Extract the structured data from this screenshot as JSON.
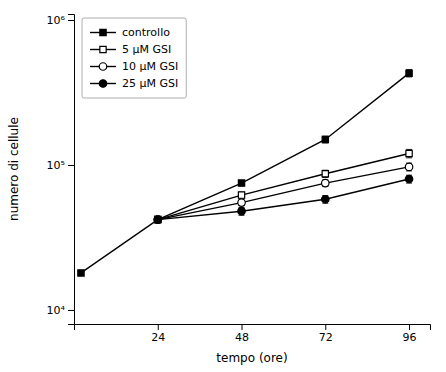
{
  "chart_data": {
    "type": "line",
    "xlabel": "tempo (ore)",
    "ylabel": "numero di cellule",
    "log": "y",
    "grid": false,
    "legend": "upper-left",
    "xlim": [
      0,
      102
    ],
    "xticks": [
      24,
      48,
      72,
      96
    ],
    "ylim": [
      8000,
      1100000
    ],
    "yticks": [
      {
        "value": 10000,
        "label": "10⁴"
      },
      {
        "value": 100000,
        "label": "10⁵"
      },
      {
        "value": 1000000,
        "label": "10⁶"
      }
    ],
    "series": [
      {
        "name": "controllo",
        "color": "#000000",
        "marker": "square-filled",
        "line_style": "solid",
        "x": [
          2,
          24,
          48,
          72,
          96
        ],
        "values": [
          18000,
          42000,
          75000,
          150000,
          430000
        ],
        "errors": [
          500,
          2000,
          3000,
          8000,
          25000
        ]
      },
      {
        "name": "5 μM GSI",
        "color": "#000000",
        "marker": "square-open",
        "line_style": "solid",
        "x": [
          24,
          48,
          72,
          96
        ],
        "values": [
          42000,
          62000,
          87000,
          120000
        ],
        "errors": [
          2000,
          3000,
          5000,
          8000
        ]
      },
      {
        "name": "10 μM GSI",
        "color": "#000000",
        "marker": "circle-open",
        "line_style": "solid",
        "x": [
          24,
          48,
          72,
          96
        ],
        "values": [
          42000,
          55000,
          75000,
          97000
        ],
        "errors": [
          2000,
          2500,
          4000,
          6000
        ]
      },
      {
        "name": "25 μM GSI",
        "color": "#000000",
        "marker": "circle-filled",
        "line_style": "solid",
        "x": [
          24,
          48,
          72,
          96
        ],
        "values": [
          42000,
          48000,
          58000,
          80000
        ],
        "errors": [
          2000,
          3000,
          3500,
          5000
        ]
      }
    ]
  }
}
